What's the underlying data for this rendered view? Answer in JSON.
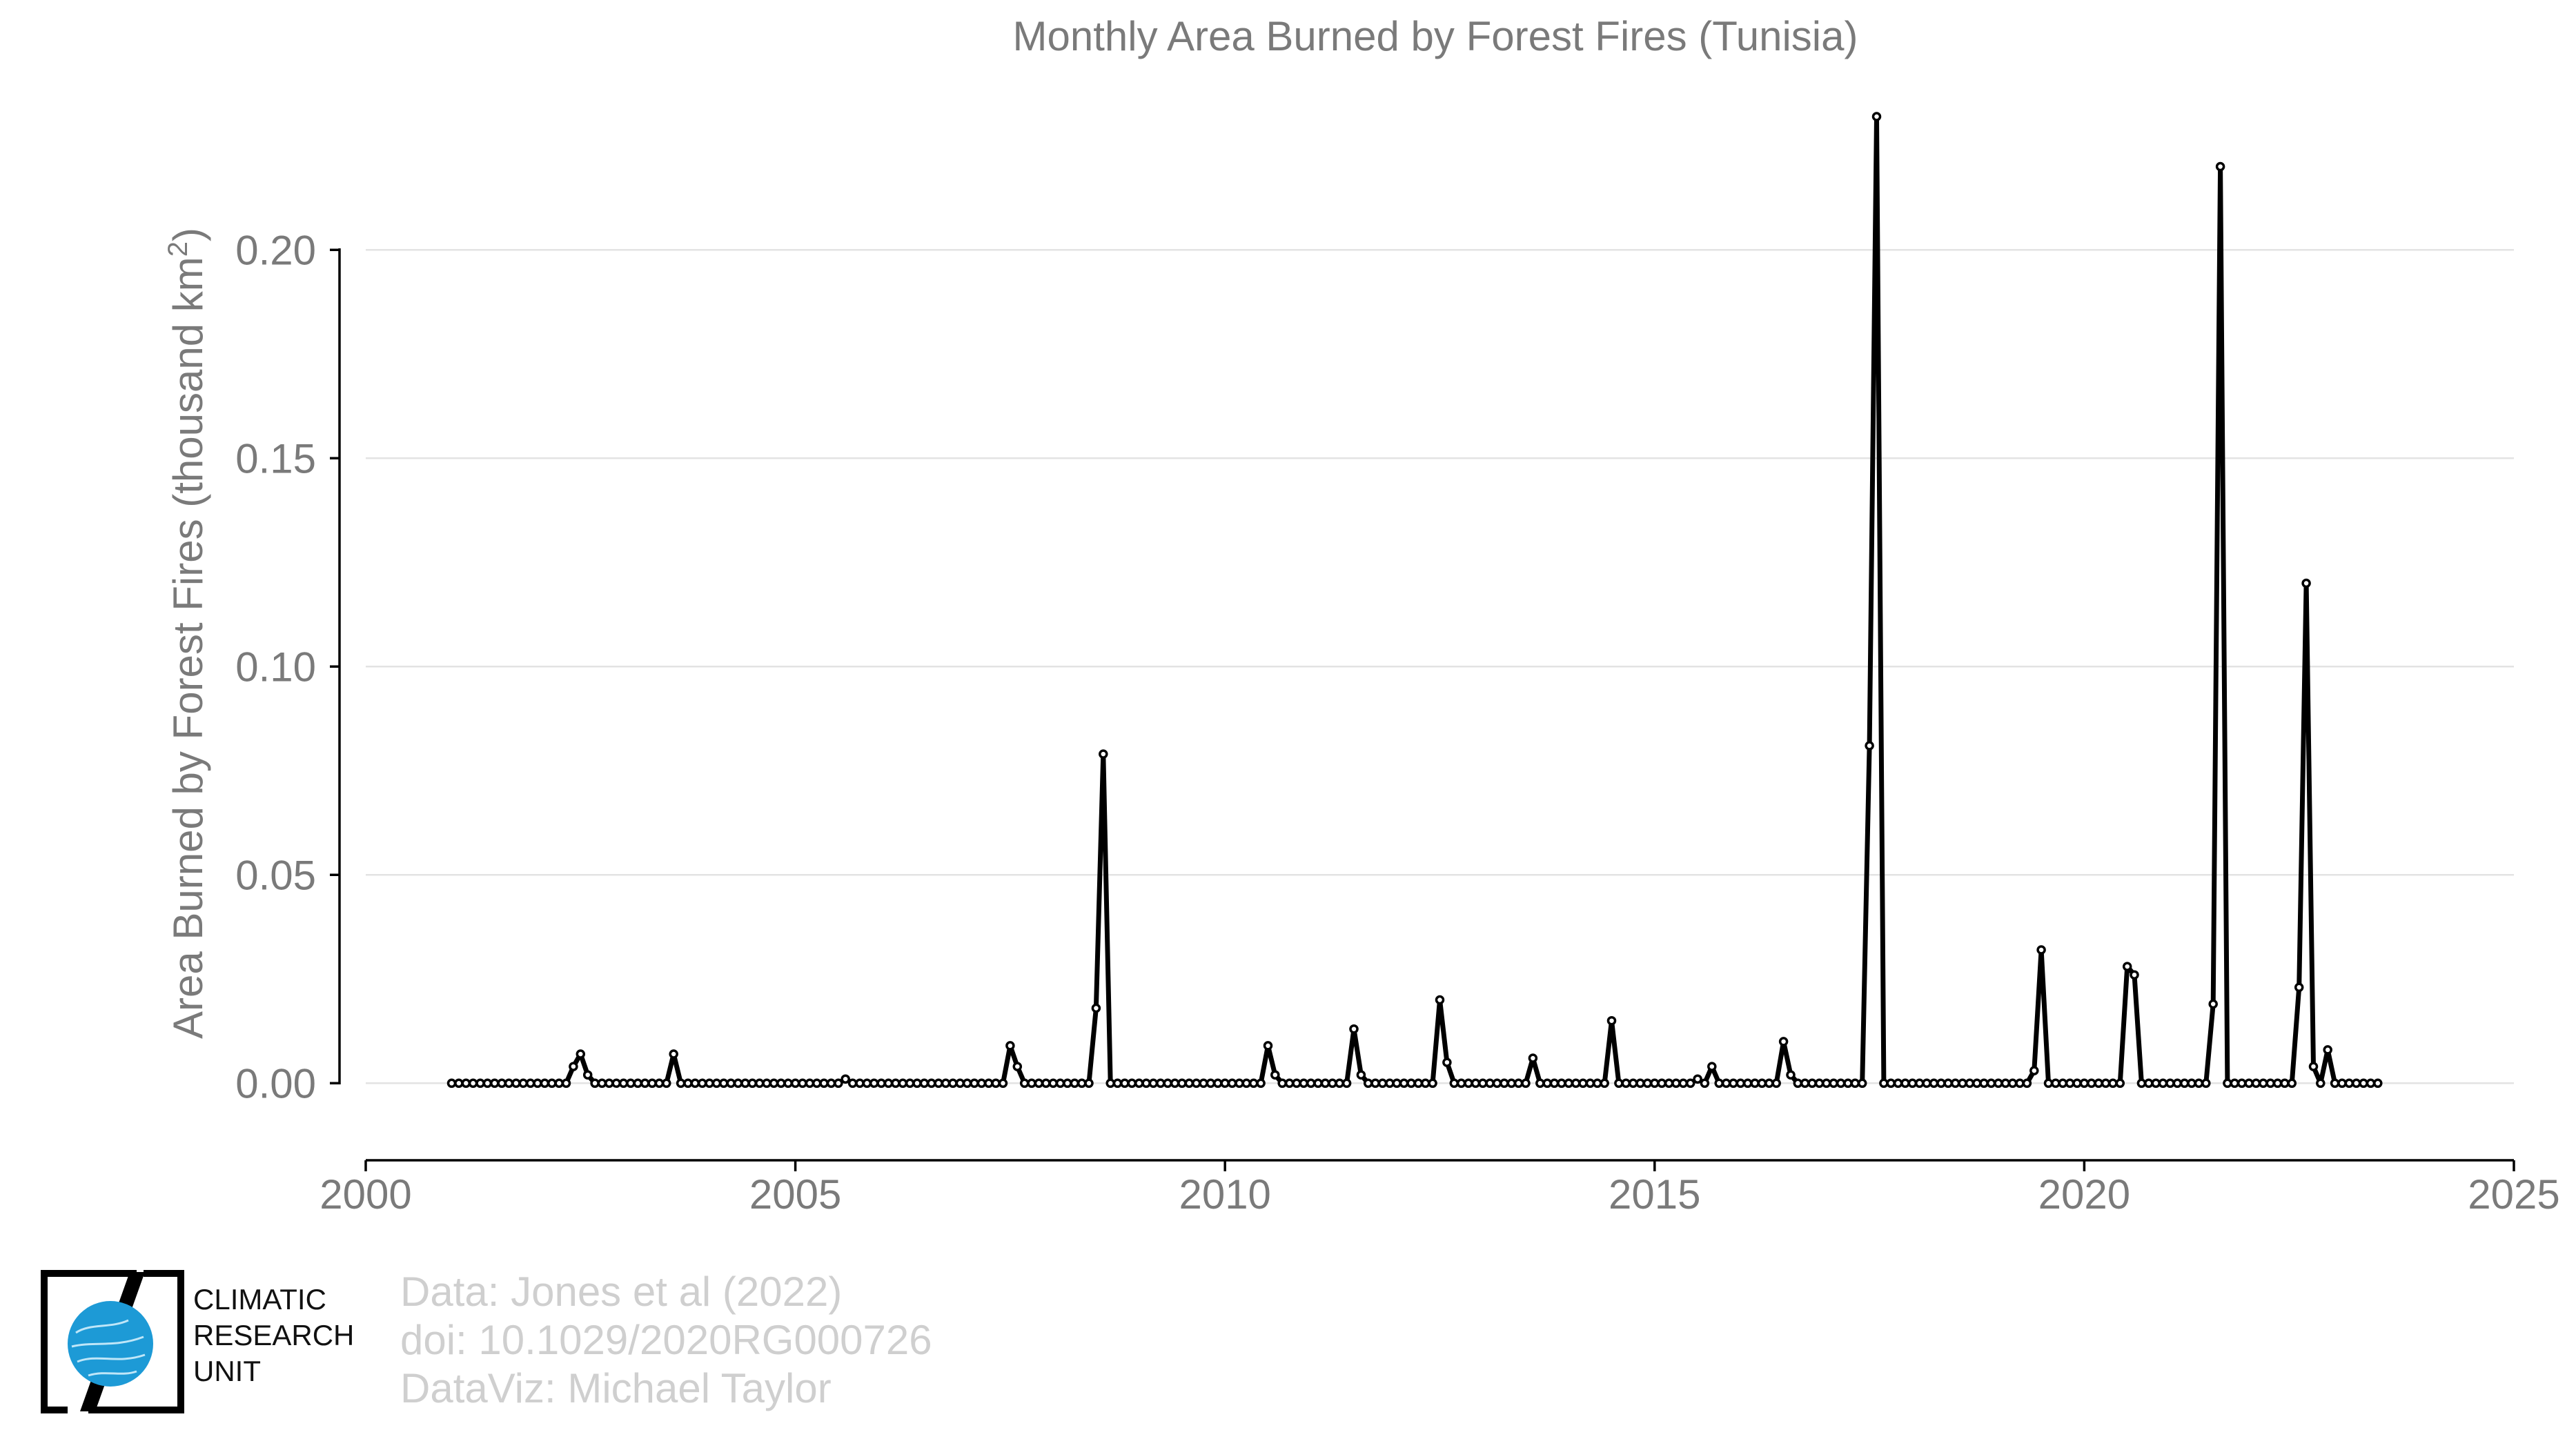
{
  "chart_data": {
    "type": "line",
    "title": "Monthly Area Burned by Forest Fires (Tunisia)",
    "ylabel": "Area Burned by Forest Fires (thousand km",
    "ylabel_superscript": "2",
    "ylabel_suffix": ")",
    "xlim": [
      2000,
      2025
    ],
    "ylim": [
      -0.0185,
      0.2315
    ],
    "x_ticks": [
      2000,
      2005,
      2010,
      2015,
      2020,
      2025
    ],
    "x_tick_labels": [
      "2000",
      "2005",
      "2010",
      "2015",
      "2020",
      "2025"
    ],
    "y_ticks": [
      0.0,
      0.05,
      0.1,
      0.15,
      0.2
    ],
    "y_tick_labels": [
      "0.00",
      "0.05",
      "0.10",
      "0.15",
      "0.20"
    ],
    "grid": "horizontal",
    "series": [
      {
        "start": "2001-01",
        "interval": "month",
        "color": "#000000",
        "marker": "open-circle",
        "values": [
          0,
          0,
          0,
          0,
          0,
          0,
          0,
          0,
          0,
          0,
          0,
          0,
          0,
          0,
          0,
          0,
          0,
          0.004,
          0.007,
          0.002,
          0,
          0,
          0,
          0,
          0,
          0,
          0,
          0,
          0,
          0,
          0,
          0.007,
          0,
          0,
          0,
          0,
          0,
          0,
          0,
          0,
          0,
          0,
          0,
          0,
          0,
          0,
          0,
          0,
          0,
          0,
          0,
          0,
          0,
          0,
          0,
          0.001,
          0,
          0,
          0,
          0,
          0,
          0,
          0,
          0,
          0,
          0,
          0,
          0,
          0,
          0,
          0,
          0,
          0,
          0,
          0,
          0,
          0,
          0,
          0.009,
          0.004,
          0,
          0,
          0,
          0,
          0,
          0,
          0,
          0,
          0,
          0,
          0.018,
          0.079,
          0,
          0,
          0,
          0,
          0,
          0,
          0,
          0,
          0,
          0,
          0,
          0,
          0,
          0,
          0,
          0,
          0,
          0,
          0,
          0,
          0,
          0,
          0.009,
          0.002,
          0,
          0,
          0,
          0,
          0,
          0,
          0,
          0,
          0,
          0,
          0.013,
          0.002,
          0,
          0,
          0,
          0,
          0,
          0,
          0,
          0,
          0,
          0,
          0.02,
          0.005,
          0,
          0,
          0,
          0,
          0,
          0,
          0,
          0,
          0,
          0,
          0,
          0.006,
          0,
          0,
          0,
          0,
          0,
          0,
          0,
          0,
          0,
          0,
          0.015,
          0,
          0,
          0,
          0,
          0,
          0,
          0,
          0,
          0,
          0,
          0,
          0.001,
          0,
          0.004,
          0,
          0,
          0,
          0,
          0,
          0,
          0,
          0,
          0,
          0.01,
          0.002,
          0,
          0,
          0,
          0,
          0,
          0,
          0,
          0,
          0,
          0,
          0.081,
          0.232,
          0,
          0,
          0,
          0,
          0,
          0,
          0,
          0,
          0,
          0,
          0,
          0,
          0,
          0,
          0,
          0,
          0,
          0,
          0,
          0,
          0,
          0.003,
          0.032,
          0,
          0,
          0,
          0,
          0,
          0,
          0,
          0,
          0,
          0,
          0,
          0.028,
          0.026,
          0,
          0,
          0,
          0,
          0,
          0,
          0,
          0,
          0,
          0,
          0.019,
          0.22,
          0,
          0,
          0,
          0,
          0,
          0,
          0,
          0,
          0,
          0,
          0.023,
          0.12,
          0.004,
          0,
          0.008,
          0,
          0,
          0,
          0,
          0,
          0,
          0
        ]
      }
    ]
  },
  "credits": {
    "line1": "Data: Jones et al (2022)",
    "line2": "doi: 10.1029/2020RG000726",
    "line3": "DataViz: Michael Taylor"
  },
  "logo": {
    "line1": "CLIMATIC",
    "line2": "RESEARCH",
    "line3": "UNIT",
    "colors": {
      "globe": "#1d9ad6",
      "frame": "#000000"
    }
  }
}
